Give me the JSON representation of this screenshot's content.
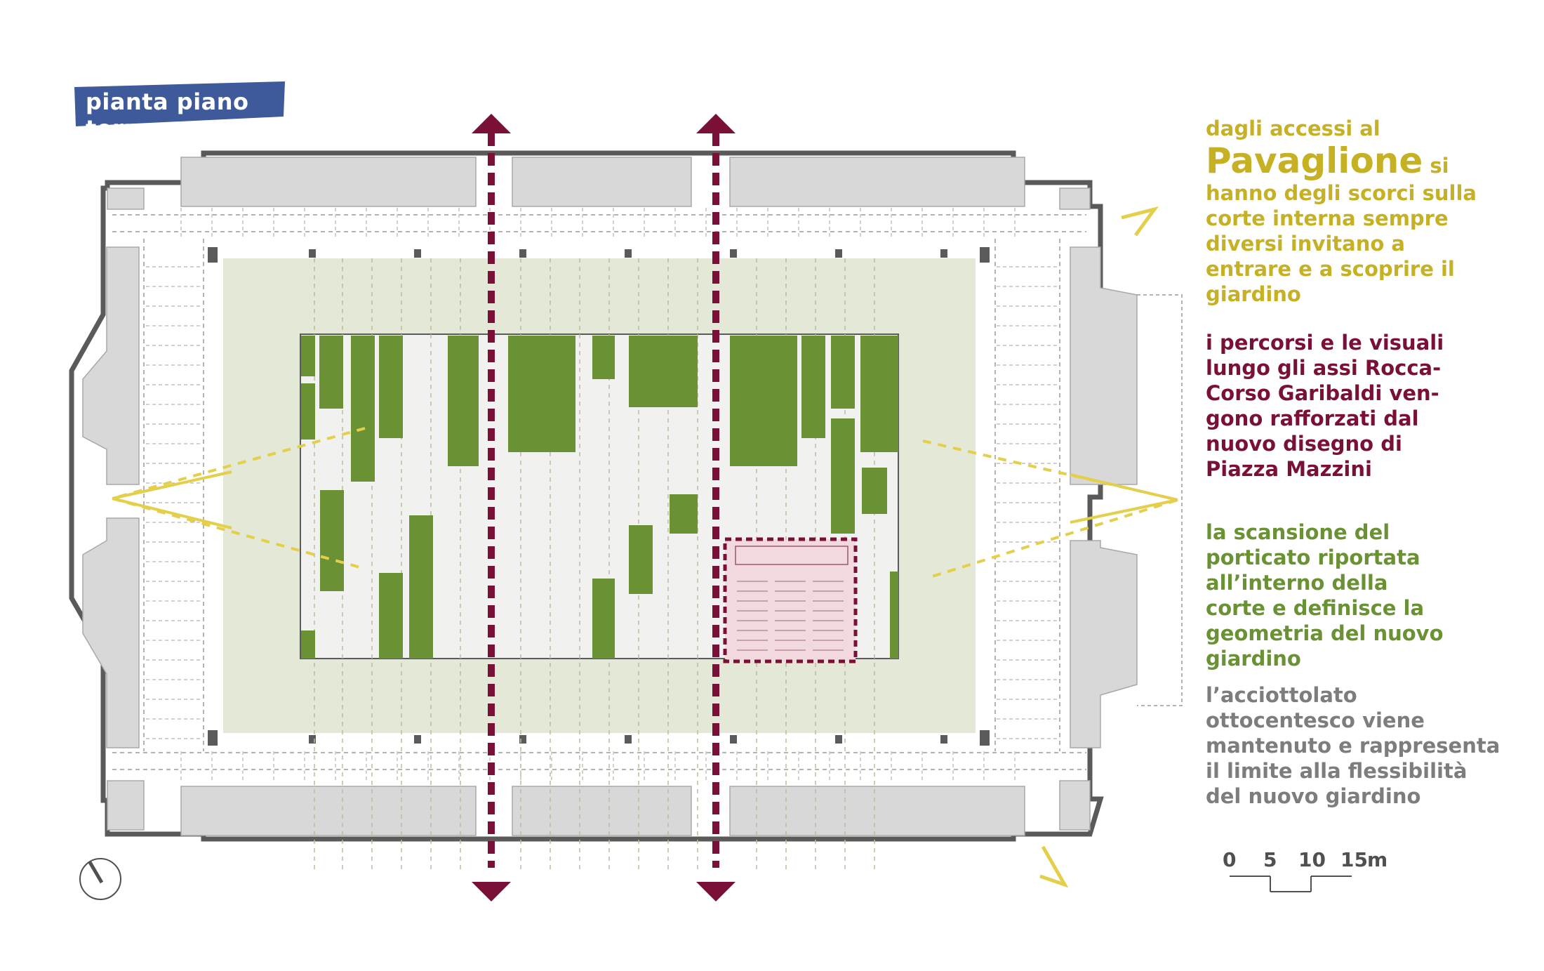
{
  "title": "pianta piano terra",
  "colors": {
    "title_bg": "#3e5a9a",
    "building_grey": "#d8d8d8",
    "wall_dark": "#5a5a5a",
    "court_green_light": "#e4e8d6",
    "garden_green": "#6a9134",
    "axis_burgundy": "#7a1038",
    "sightline_yellow": "#e3cf4a",
    "auditorium_pink": "#f2d9de"
  },
  "notes": {
    "accessi": {
      "line1": "dagli accessi al",
      "big": "Pavaglione",
      "si": " si",
      "line3": "hanno degli scorci sulla",
      "line4": "corte interna sempre",
      "line5": "diversi  invitano a",
      "line6": "entrare e a scoprire il",
      "line7": "giardino"
    },
    "percorsi": {
      "line1": "i percorsi e le visuali",
      "line2": "lungo gli assi Rocca-",
      "line3": "Corso Garibaldi ven-",
      "line4": "gono rafforzati dal",
      "line5": "nuovo disegno di",
      "line6": "Piazza Mazzini"
    },
    "scansione": {
      "line1": "la scansione del",
      "line2": "porticato riportata",
      "line3": "all’interno della",
      "line4": "corte e definisce la",
      "line5": "geometria del nuovo",
      "line6": "giardino"
    },
    "acciottolato": {
      "line1": "l’acciottolato",
      "line2": "ottocentesco viene",
      "line3": "mantenuto e rappresenta",
      "line4": "il limite alla flessibilità",
      "line5": "del nuovo giardino"
    }
  },
  "scale_bar": {
    "labels": [
      "0",
      "5",
      "10",
      "15"
    ],
    "unit": "m"
  }
}
